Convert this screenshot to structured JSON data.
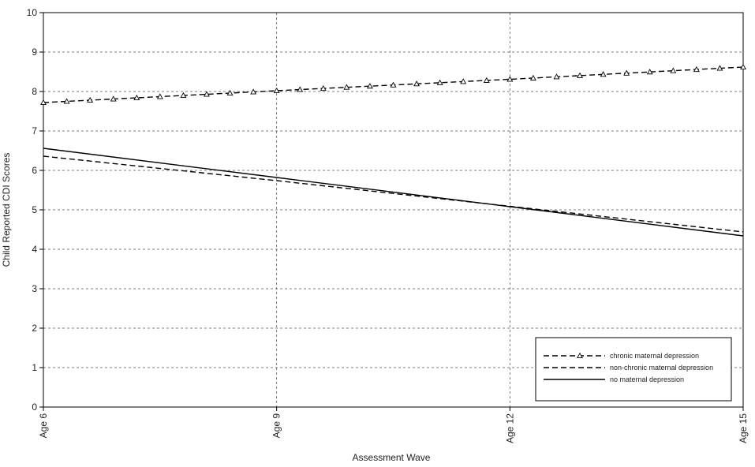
{
  "chart_data": {
    "type": "line",
    "title": "",
    "xlabel": "Assessment Wave",
    "ylabel": "Child Reported CDI Scores",
    "x": [
      6,
      9,
      12,
      15
    ],
    "xticks": [
      {
        "value": 6,
        "label": "Age 6"
      },
      {
        "value": 9,
        "label": "Age 9"
      },
      {
        "value": 12,
        "label": "Age 12"
      },
      {
        "value": 15,
        "label": "Age 15"
      }
    ],
    "xlim": [
      6,
      15
    ],
    "ylim": [
      0,
      10
    ],
    "yticks": [
      0,
      1,
      2,
      3,
      4,
      5,
      6,
      7,
      8,
      9,
      10
    ],
    "grid": true,
    "legend_position": "bottom-right",
    "series": [
      {
        "name": "chronic maternal depression",
        "style": "dashed-triangle",
        "color": "#000000",
        "x": [
          6,
          9,
          12,
          15
        ],
        "values": [
          7.72,
          8.02,
          8.31,
          8.62
        ]
      },
      {
        "name": "non-chronic maternal depression",
        "style": "dashed",
        "color": "#000000",
        "x": [
          6,
          9,
          12,
          15
        ],
        "values": [
          6.36,
          5.74,
          5.09,
          4.44
        ]
      },
      {
        "name": "no maternal depression",
        "style": "solid",
        "color": "#000000",
        "x": [
          6,
          9,
          12,
          15
        ],
        "values": [
          6.56,
          5.82,
          5.08,
          4.34
        ]
      }
    ]
  }
}
